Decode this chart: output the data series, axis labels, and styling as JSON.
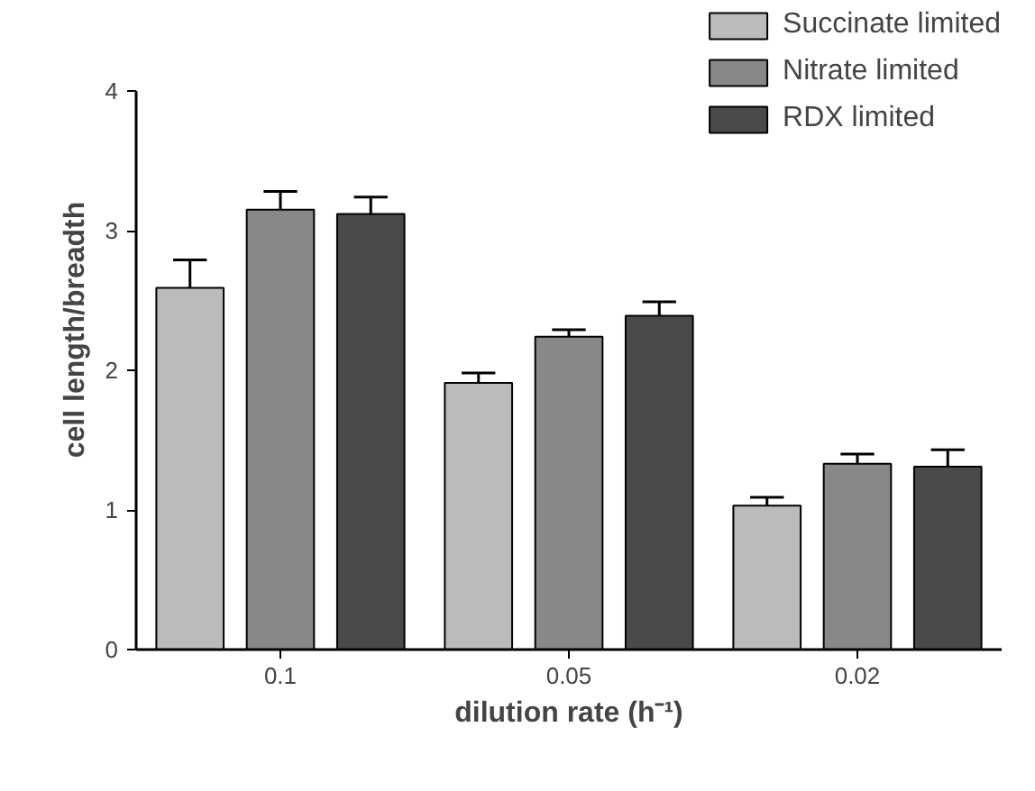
{
  "chart_data": {
    "type": "bar",
    "xlabel": "dilution rate (h⁻¹)",
    "ylabel": "cell length/breadth",
    "categories": [
      "0.1",
      "0.05",
      "0.02"
    ],
    "series": [
      {
        "name": "Succinate limited",
        "color": "#bbbbbb",
        "values": [
          2.59,
          1.91,
          1.03
        ],
        "errors": [
          0.2,
          0.07,
          0.06
        ]
      },
      {
        "name": "Nitrate limited",
        "color": "#888888",
        "values": [
          3.15,
          2.24,
          1.33
        ],
        "errors": [
          0.13,
          0.05,
          0.07
        ]
      },
      {
        "name": "RDX limited",
        "color": "#4a4a4a",
        "values": [
          3.12,
          2.39,
          1.31
        ],
        "errors": [
          0.12,
          0.1,
          0.12
        ]
      }
    ],
    "ylim": [
      0,
      4
    ],
    "yticks": [
      0,
      1,
      2,
      3,
      4
    ],
    "grid": false,
    "legend": "top right"
  }
}
